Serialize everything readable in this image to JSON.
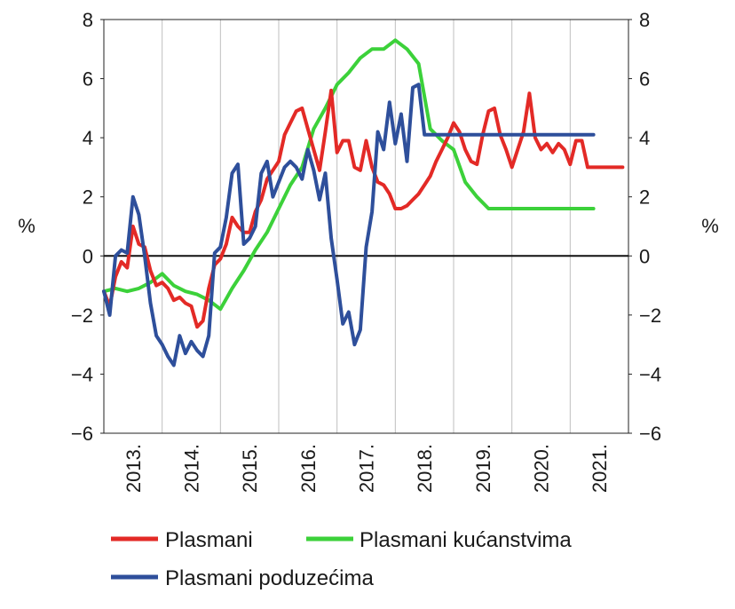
{
  "chart_data": {
    "type": "line",
    "ylabel_left": "%",
    "ylabel_right": "%",
    "ylim": [
      -6,
      8
    ],
    "yticks": [
      8,
      6,
      4,
      2,
      0,
      -2,
      -4,
      -6
    ],
    "ytick_labels": [
      "8",
      "6",
      "4",
      "2",
      "0",
      "−2",
      "−4",
      "−6"
    ],
    "xlim": [
      2013.0,
      2022.0
    ],
    "xtick_labels": [
      "2013.",
      "2014.",
      "2015.",
      "2016.",
      "2017.",
      "2018.",
      "2019.",
      "2020.",
      "2021."
    ],
    "grid": "vertical",
    "zero_line": true,
    "legend": "bottom",
    "series": [
      {
        "name": "Plasmani",
        "color": "#e32a26",
        "x": [
          2013.0,
          2013.1,
          2013.2,
          2013.3,
          2013.4,
          2013.5,
          2013.6,
          2013.7,
          2013.8,
          2013.9,
          2014.0,
          2014.1,
          2014.2,
          2014.3,
          2014.4,
          2014.5,
          2014.6,
          2014.7,
          2014.8,
          2014.9,
          2015.0,
          2015.1,
          2015.2,
          2015.3,
          2015.4,
          2015.5,
          2015.6,
          2015.7,
          2015.8,
          2015.9,
          2016.0,
          2016.1,
          2016.2,
          2016.3,
          2016.4,
          2016.5,
          2016.6,
          2016.7,
          2016.8,
          2016.9,
          2017.0,
          2017.1,
          2017.2,
          2017.3,
          2017.4,
          2017.5,
          2017.6,
          2017.7,
          2017.8,
          2017.9,
          2018.0,
          2018.1,
          2018.2,
          2018.3,
          2018.4,
          2018.5,
          2018.6,
          2018.7,
          2018.8,
          2018.9,
          2019.0,
          2019.1,
          2019.2,
          2019.3,
          2019.4,
          2019.5,
          2019.6,
          2019.7,
          2019.8,
          2019.9,
          2020.0,
          2020.1,
          2020.2,
          2020.3,
          2020.4,
          2020.5,
          2020.6,
          2020.7,
          2020.8,
          2020.9,
          2021.0,
          2021.1,
          2021.2,
          2021.3,
          2021.4,
          2021.5,
          2021.6,
          2021.7,
          2021.8,
          2021.9
        ],
        "values": [
          -1.2,
          -1.7,
          -0.7,
          -0.2,
          -0.4,
          1.0,
          0.4,
          0.3,
          -0.5,
          -1.0,
          -0.9,
          -1.1,
          -1.5,
          -1.4,
          -1.6,
          -1.7,
          -2.4,
          -2.2,
          -1.1,
          -0.3,
          -0.1,
          0.4,
          1.3,
          1.0,
          0.8,
          0.8,
          1.5,
          1.9,
          2.6,
          2.9,
          3.2,
          4.1,
          4.5,
          4.9,
          5.0,
          4.3,
          3.6,
          2.9,
          4.2,
          5.6,
          3.5,
          3.9,
          3.9,
          3.0,
          2.9,
          3.9,
          3.0,
          2.5,
          2.4,
          2.1,
          1.6,
          1.6,
          1.7,
          1.9,
          2.1,
          2.4,
          2.7,
          3.2,
          3.6,
          4.0,
          4.5,
          4.2,
          3.6,
          3.2,
          3.1,
          4.1,
          4.9,
          5.0,
          4.1,
          3.6,
          3.0,
          3.6,
          4.2,
          5.5,
          4.0,
          3.6,
          3.8,
          3.5,
          3.8,
          3.6,
          3.1,
          3.9,
          3.9,
          3.0,
          3.0,
          3.0,
          3.0,
          3.0,
          3.0,
          3.0
        ]
      },
      {
        "name": "Plasmani kućanstvima",
        "color": "#3cd13a",
        "x": [
          2013.0,
          2013.2,
          2013.4,
          2013.6,
          2013.8,
          2014.0,
          2014.2,
          2014.4,
          2014.6,
          2014.8,
          2015.0,
          2015.2,
          2015.4,
          2015.6,
          2015.8,
          2016.0,
          2016.2,
          2016.4,
          2016.6,
          2016.8,
          2017.0,
          2017.2,
          2017.4,
          2017.6,
          2017.8,
          2018.0,
          2018.2,
          2018.4,
          2018.6,
          2018.8,
          2019.0,
          2019.2,
          2019.4,
          2019.6,
          2019.8,
          2020.0,
          2020.2,
          2020.4,
          2020.6,
          2020.8,
          2021.0,
          2021.2,
          2021.4
        ],
        "values": [
          -1.2,
          -1.1,
          -1.2,
          -1.1,
          -0.9,
          -0.6,
          -1.0,
          -1.2,
          -1.3,
          -1.5,
          -1.8,
          -1.1,
          -0.5,
          0.2,
          0.8,
          1.6,
          2.4,
          3.0,
          4.3,
          5.0,
          5.8,
          6.2,
          6.7,
          7.0,
          7.0,
          7.3,
          7.0,
          6.5,
          4.3,
          3.9,
          3.6,
          2.5,
          2.0,
          1.6,
          1.6,
          1.6,
          1.6,
          1.6,
          1.6,
          1.6,
          1.6,
          1.6,
          1.6
        ]
      },
      {
        "name": "Plasmani poduzećima",
        "color": "#2e4f9b",
        "x": [
          2013.0,
          2013.1,
          2013.2,
          2013.3,
          2013.4,
          2013.5,
          2013.6,
          2013.7,
          2013.8,
          2013.9,
          2014.0,
          2014.1,
          2014.2,
          2014.3,
          2014.4,
          2014.5,
          2014.6,
          2014.7,
          2014.8,
          2014.9,
          2015.0,
          2015.1,
          2015.2,
          2015.3,
          2015.4,
          2015.5,
          2015.6,
          2015.7,
          2015.8,
          2015.9,
          2016.0,
          2016.1,
          2016.2,
          2016.3,
          2016.4,
          2016.5,
          2016.6,
          2016.7,
          2016.8,
          2016.9,
          2017.0,
          2017.1,
          2017.2,
          2017.3,
          2017.4,
          2017.5,
          2017.6,
          2017.7,
          2017.8,
          2017.9,
          2018.0,
          2018.1,
          2018.2,
          2018.3,
          2018.4,
          2018.5,
          2018.6,
          2018.7,
          2018.8,
          2018.9,
          2019.0,
          2019.1,
          2019.2,
          2019.3,
          2019.4,
          2019.5,
          2019.6,
          2019.7,
          2019.8,
          2019.9,
          2020.0,
          2020.1,
          2020.2,
          2020.3,
          2020.4,
          2020.5,
          2020.6,
          2020.7,
          2020.8,
          2020.9,
          2021.0,
          2021.1,
          2021.2,
          2021.3,
          2021.4
        ],
        "values": [
          -1.2,
          -2.0,
          0.0,
          0.2,
          0.1,
          2.0,
          1.4,
          0.0,
          -1.6,
          -2.7,
          -3.0,
          -3.4,
          -3.7,
          -2.7,
          -3.3,
          -2.9,
          -3.2,
          -3.4,
          -2.7,
          0.1,
          0.3,
          1.3,
          2.8,
          3.1,
          0.4,
          0.6,
          1.0,
          2.8,
          3.2,
          2.0,
          2.5,
          3.0,
          3.2,
          3.0,
          2.6,
          3.6,
          2.9,
          1.9,
          2.8,
          0.6,
          -0.8,
          -2.3,
          -1.9,
          -3.0,
          -2.5,
          0.3,
          1.5,
          4.2,
          3.6,
          5.2,
          3.8,
          4.8,
          3.2,
          5.7,
          5.8,
          4.1,
          4.1,
          4.1,
          4.1,
          4.1,
          4.1,
          4.1,
          4.1,
          4.1,
          4.1,
          4.1,
          4.1,
          4.1,
          4.1,
          4.1,
          4.1,
          4.1,
          4.1,
          4.1,
          4.1,
          4.1,
          4.1,
          4.1,
          4.1,
          4.1,
          4.1,
          4.1,
          4.1,
          4.1,
          4.1
        ]
      }
    ]
  }
}
